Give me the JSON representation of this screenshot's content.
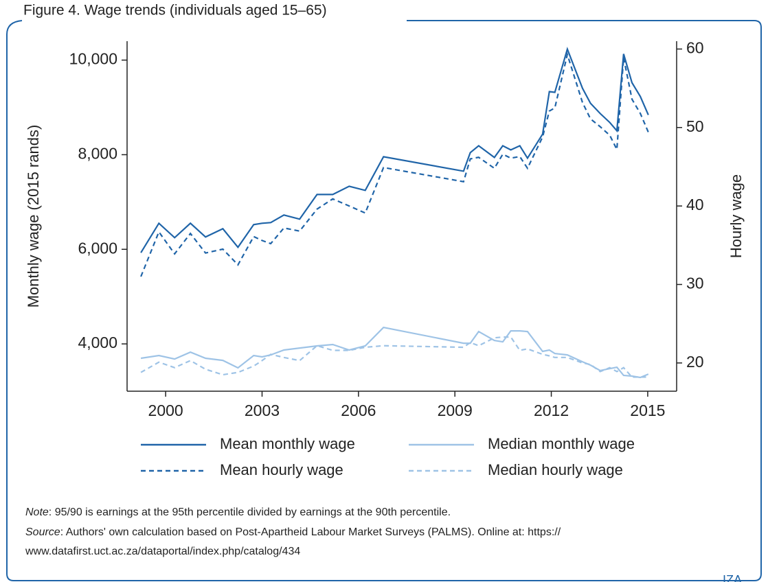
{
  "chart_data": {
    "type": "line",
    "title": "Figure 4. Wage trends (individuals aged 15–65)",
    "ylabel": "Monthly wage (2015 rands)",
    "y2label": "Hourly wage",
    "xlim": [
      1998.8,
      2015.9
    ],
    "ylim": [
      3000,
      10400
    ],
    "y2lim": [
      16.4,
      61
    ],
    "xticks": [
      2000,
      2003,
      2006,
      2009,
      2012,
      2015
    ],
    "yticks": [
      {
        "value": 4000,
        "label": "4,000"
      },
      {
        "value": 6000,
        "label": "6,000"
      },
      {
        "value": 8000,
        "label": "8,000"
      },
      {
        "value": 10000,
        "label": "10,000"
      }
    ],
    "y2ticks": [
      20,
      30,
      40,
      50,
      60
    ],
    "x": [
      1999.23,
      1999.79,
      2000.28,
      2000.77,
      2001.24,
      2001.78,
      2002.25,
      2002.74,
      2003.0,
      2003.27,
      2003.68,
      2004.17,
      2004.71,
      2005.2,
      2005.71,
      2006.21,
      2006.78,
      2009.27,
      2009.48,
      2009.74,
      2010.23,
      2010.49,
      2010.74,
      2011.02,
      2011.26,
      2011.73,
      2011.94,
      2012.11,
      2012.5,
      2012.97,
      2013.22,
      2013.52,
      2013.82,
      2014.04,
      2014.25,
      2014.51,
      2014.77,
      2015.02
    ],
    "series": [
      {
        "name": "Mean monthly wage",
        "color": "#1f64a8",
        "style": "solid",
        "axis": "y",
        "values": [
          5928,
          6551,
          6246,
          6551,
          6261,
          6435,
          6043,
          6522,
          6551,
          6565,
          6725,
          6638,
          7159,
          7159,
          7333,
          7246,
          7957,
          7652,
          8043,
          8188,
          7942,
          8188,
          8101,
          8188,
          7928,
          8435,
          9333,
          9319,
          10232,
          9406,
          9087,
          8870,
          8681,
          8507,
          10130,
          9522,
          9232,
          8841
        ]
      },
      {
        "name": "Median monthly wage",
        "color": "#9ec3e6",
        "style": "solid",
        "axis": "y",
        "values": [
          3696,
          3754,
          3681,
          3826,
          3696,
          3652,
          3493,
          3754,
          3725,
          3768,
          3870,
          3913,
          3957,
          3986,
          3870,
          3957,
          4348,
          4014,
          4014,
          4261,
          4072,
          4043,
          4275,
          4275,
          4261,
          3841,
          3870,
          3797,
          3768,
          3623,
          3551,
          3435,
          3478,
          3507,
          3333,
          3319,
          3290,
          3362
        ]
      },
      {
        "name": "Mean hourly wage",
        "color": "#1f64a8",
        "style": "dashed",
        "axis": "y2",
        "values": [
          31.0,
          36.7,
          33.9,
          36.5,
          34.0,
          34.5,
          32.5,
          36.1,
          35.6,
          35.2,
          37.2,
          36.8,
          39.6,
          40.9,
          40.0,
          39.1,
          44.9,
          43.1,
          46.0,
          46.2,
          44.8,
          46.6,
          46.1,
          46.3,
          44.8,
          48.8,
          52.1,
          52.5,
          59.3,
          53.2,
          51.1,
          50.1,
          49.0,
          47.2,
          58.9,
          53.6,
          51.8,
          49.4
        ]
      },
      {
        "name": "Median hourly wage",
        "color": "#9ec3e6",
        "style": "dashed",
        "axis": "y2",
        "values": [
          18.8,
          20.1,
          19.4,
          20.3,
          19.2,
          18.5,
          18.8,
          19.6,
          20.3,
          21.1,
          20.7,
          20.3,
          22.2,
          21.6,
          21.6,
          22.0,
          22.2,
          22.0,
          22.6,
          22.2,
          23.2,
          23.3,
          23.3,
          21.6,
          21.8,
          21.1,
          20.9,
          20.7,
          20.7,
          20.0,
          19.8,
          18.9,
          19.4,
          18.9,
          19.4,
          18.2,
          18.2,
          18.2
        ]
      }
    ]
  },
  "note": {
    "label": "Note",
    "text": ": 95/90 is earnings at the 95th percentile divided by earnings at the 90th percentile."
  },
  "source": {
    "label": "Source",
    "lines": [
      ": Authors' own calculation based on Post-Apartheid Labour Market Surveys (PALMS). Online at: https://",
      "www.datafirst.uct.ac.za/dataportal/index.php/catalog/434"
    ]
  },
  "logo": "IZA"
}
